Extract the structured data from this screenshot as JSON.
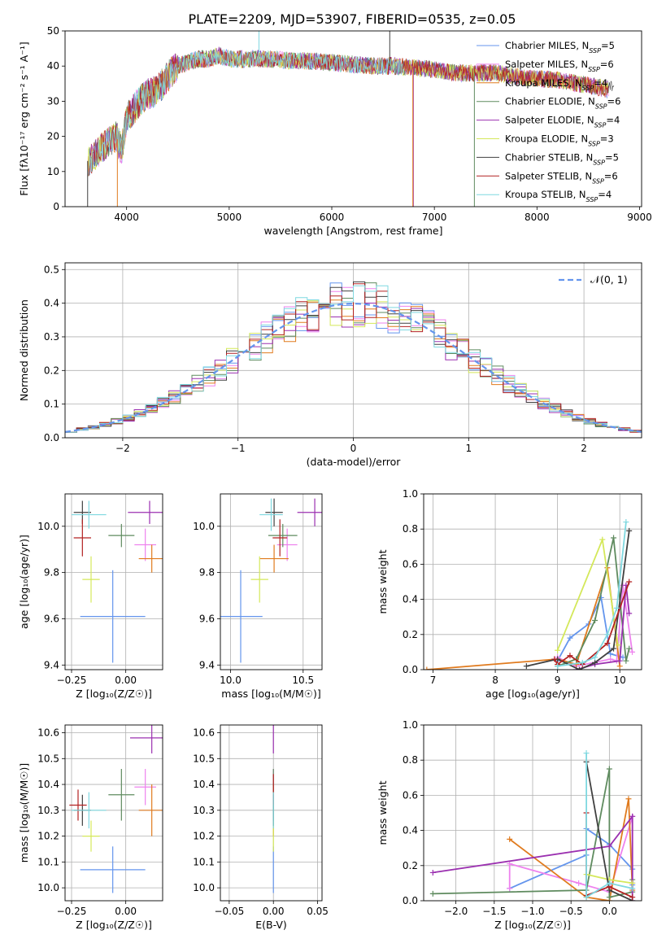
{
  "figure_title": "PLATE=2209, MJD=53907, FIBERID=0535, z=0.05",
  "legend": [
    {
      "label": "Chabrier MILES, N",
      "sub": "SSP",
      "suffix": "=5",
      "color": "#6495ed"
    },
    {
      "label": "Salpeter MILES, N",
      "sub": "SSP",
      "suffix": "=6",
      "color": "#ee82ee"
    },
    {
      "label": "Kroupa MILES, N",
      "sub": "SSP",
      "suffix": "=4",
      "color": "#e07b1f"
    },
    {
      "label": "Chabrier ELODIE, N",
      "sub": "SSP",
      "suffix": "=6",
      "color": "#5f8b5f"
    },
    {
      "label": "Salpeter ELODIE, N",
      "sub": "SSP",
      "suffix": "=4",
      "color": "#9b30b0"
    },
    {
      "label": "Kroupa ELODIE, N",
      "sub": "SSP",
      "suffix": "=3",
      "color": "#d4e85a"
    },
    {
      "label": "Chabrier STELIB, N",
      "sub": "SSP",
      "suffix": "=5",
      "color": "#404040"
    },
    {
      "label": "Salpeter STELIB, N",
      "sub": "SSP",
      "suffix": "=6",
      "color": "#b22222"
    },
    {
      "label": "Kroupa STELIB, N",
      "sub": "SSP",
      "suffix": "=4",
      "color": "#7fd8e0"
    }
  ],
  "chart_data": [
    {
      "id": "spectrum",
      "type": "line",
      "xlabel": "wavelength [Angstrom, rest frame]",
      "ylabel": "Flux [f",
      "ylabel_full": "Flux [fλ10⁻¹⁷ erg cm⁻² s⁻¹ A⁻¹]",
      "xlim": [
        3400,
        9020
      ],
      "ylim": [
        0,
        50
      ],
      "xticks": [
        "4000",
        "5000",
        "6000",
        "7000",
        "8000",
        "9000"
      ],
      "yticks": [
        "0",
        "10",
        "20",
        "30",
        "40",
        "50"
      ],
      "x": [
        3620,
        3700,
        3800,
        3900,
        3950,
        4000,
        4100,
        4200,
        4300,
        4400,
        4500,
        4600,
        4700,
        4800,
        4900,
        5000,
        5200,
        5400,
        5600,
        5800,
        6000,
        6200,
        6400,
        6600,
        6800,
        7000,
        7200,
        7400,
        7600,
        7800,
        8000,
        8200,
        8400,
        8600,
        8750
      ],
      "y": [
        13,
        15,
        18,
        20,
        16,
        25,
        29,
        32,
        33,
        37,
        40,
        41,
        42,
        42,
        43,
        42,
        42,
        42,
        41.5,
        41.5,
        41,
        40.5,
        40,
        40,
        39.5,
        39,
        38,
        38,
        38,
        37,
        36.5,
        36,
        35,
        34,
        33
      ]
    },
    {
      "id": "residuals",
      "type": "histogram",
      "xlabel": "(data-model)/error",
      "ylabel": "Normed distribution",
      "xlim": [
        -2.5,
        2.5
      ],
      "ylim": [
        0,
        0.52
      ],
      "xticks": [
        "−2",
        "−1",
        "0",
        "1",
        "2"
      ],
      "yticks": [
        "0.0",
        "0.1",
        "0.2",
        "0.3",
        "0.4",
        "0.5"
      ],
      "normal_label": "𝒩(0, 1)",
      "bin_width": 0.1
    },
    {
      "id": "age_vs_Z",
      "type": "scatter",
      "xlabel": "Z [log₁₀(Z/Z☉)]",
      "ylabel": "age  [log₁₀(age/yr)]",
      "xlim": [
        -0.28,
        0.17
      ],
      "ylim": [
        9.38,
        10.14
      ],
      "xticks": [
        {
          "v": -0.25,
          "t": "−0.25"
        },
        {
          "v": 0.0,
          "t": "0.00"
        }
      ],
      "yticks": [
        {
          "v": 9.4,
          "t": "9.4"
        },
        {
          "v": 9.6,
          "t": "9.6"
        },
        {
          "v": 9.8,
          "t": "9.8"
        },
        {
          "v": 10.0,
          "t": "10.0"
        }
      ],
      "points": [
        {
          "x": -0.06,
          "y": 9.61,
          "ex": 0.15,
          "ey": 0.2
        },
        {
          "x": 0.09,
          "y": 9.92,
          "ex": 0.05,
          "ey": 0.07
        },
        {
          "x": 0.12,
          "y": 9.86,
          "ex": 0.06,
          "ey": 0.06
        },
        {
          "x": -0.02,
          "y": 9.96,
          "ex": 0.06,
          "ey": 0.05
        },
        {
          "x": 0.11,
          "y": 10.06,
          "ex": 0.1,
          "ey": 0.05
        },
        {
          "x": -0.16,
          "y": 9.77,
          "ex": 0.04,
          "ey": 0.1
        },
        {
          "x": -0.2,
          "y": 10.06,
          "ex": 0.04,
          "ey": 0.05
        },
        {
          "x": -0.2,
          "y": 9.95,
          "ex": 0.04,
          "ey": 0.08
        },
        {
          "x": -0.17,
          "y": 10.05,
          "ex": 0.08,
          "ey": 0.06
        }
      ]
    },
    {
      "id": "age_vs_mass",
      "type": "scatter",
      "xlabel": "mass [log₁₀(M/M☉)]",
      "xlim": [
        9.93,
        10.63
      ],
      "ylim": [
        9.38,
        10.14
      ],
      "xticks": [
        {
          "v": 10.0,
          "t": "10.0"
        },
        {
          "v": 10.5,
          "t": "10.5"
        }
      ],
      "yticks": [
        {
          "v": 9.4,
          "t": "9.4"
        },
        {
          "v": 9.6,
          "t": "9.6"
        },
        {
          "v": 9.8,
          "t": "9.8"
        },
        {
          "v": 10.0,
          "t": "10.0"
        }
      ],
      "points": [
        {
          "x": 10.07,
          "y": 9.61,
          "ex": 0.15,
          "ey": 0.2
        },
        {
          "x": 10.39,
          "y": 9.92,
          "ex": 0.07,
          "ey": 0.07
        },
        {
          "x": 10.3,
          "y": 9.86,
          "ex": 0.1,
          "ey": 0.06
        },
        {
          "x": 10.36,
          "y": 9.96,
          "ex": 0.1,
          "ey": 0.05
        },
        {
          "x": 10.58,
          "y": 10.06,
          "ex": 0.12,
          "ey": 0.06
        },
        {
          "x": 10.2,
          "y": 9.77,
          "ex": 0.06,
          "ey": 0.1
        },
        {
          "x": 10.3,
          "y": 10.06,
          "ex": 0.06,
          "ey": 0.06
        },
        {
          "x": 10.34,
          "y": 9.95,
          "ex": 0.05,
          "ey": 0.08
        },
        {
          "x": 10.28,
          "y": 10.05,
          "ex": 0.08,
          "ey": 0.07
        }
      ]
    },
    {
      "id": "weight_vs_age",
      "type": "line",
      "xlabel": "age  [log₁₀(age/yr)]",
      "ylabel": "mass weight",
      "xlim": [
        6.85,
        10.35
      ],
      "ylim": [
        0,
        1.0
      ],
      "xticks": [
        {
          "v": 7,
          "t": "7"
        },
        {
          "v": 8,
          "t": "8"
        },
        {
          "v": 9,
          "t": "9"
        },
        {
          "v": 10,
          "t": "10"
        }
      ],
      "yticks": [
        {
          "v": 0,
          "t": "0.0"
        },
        {
          "v": 0.2,
          "t": "0.2"
        },
        {
          "v": 0.4,
          "t": "0.4"
        },
        {
          "v": 0.6,
          "t": "0.6"
        },
        {
          "v": 0.8,
          "t": "0.8"
        },
        {
          "v": 1.0,
          "t": "1.0"
        }
      ],
      "series": [
        {
          "x": [
            9.0,
            9.2,
            9.5,
            9.7,
            9.85,
            10.05
          ],
          "y": [
            0.05,
            0.18,
            0.26,
            0.41,
            0.09,
            0.07
          ]
        },
        {
          "x": [
            9.0,
            9.3,
            9.85,
            9.95,
            10.05,
            10.2
          ],
          "y": [
            0.07,
            0.02,
            0.06,
            0.05,
            0.48,
            0.1
          ]
        },
        {
          "x": [
            6.9,
            9.0,
            9.3,
            9.8,
            10.0
          ],
          "y": [
            0.0,
            0.06,
            0.03,
            0.58,
            0.02
          ]
        },
        {
          "x": [
            9.0,
            9.3,
            9.6,
            9.9,
            10.1,
            10.15
          ],
          "y": [
            0.02,
            0.06,
            0.28,
            0.75,
            0.05,
            0.12
          ]
        },
        {
          "x": [
            9.3,
            9.6,
            10.0,
            10.1,
            10.15
          ],
          "y": [
            0.0,
            0.03,
            0.05,
            0.48,
            0.32
          ]
        },
        {
          "x": [
            9.0,
            9.72,
            9.97
          ],
          "y": [
            0.11,
            0.74,
            0.14
          ]
        },
        {
          "x": [
            8.5,
            9.0,
            9.35,
            9.6,
            9.9,
            10.15
          ],
          "y": [
            0.02,
            0.06,
            0.0,
            0.04,
            0.12,
            0.79
          ]
        },
        {
          "x": [
            8.95,
            9.0,
            9.2,
            9.4,
            9.8,
            10.15
          ],
          "y": [
            0.06,
            0.03,
            0.08,
            0.03,
            0.15,
            0.5
          ]
        },
        {
          "x": [
            9.0,
            9.4,
            9.6,
            9.8,
            9.95,
            10.1
          ],
          "y": [
            0.02,
            0.04,
            0.07,
            0.2,
            0.35,
            0.84
          ]
        }
      ]
    },
    {
      "id": "mass_vs_Z",
      "type": "scatter",
      "xlabel": "Z [log₁₀(Z/Z☉)]",
      "ylabel": "mass [log₁₀(M/M☉)]",
      "xlim": [
        -0.28,
        0.17
      ],
      "ylim": [
        9.95,
        10.63
      ],
      "xticks": [
        {
          "v": -0.25,
          "t": "−0.25"
        },
        {
          "v": 0.0,
          "t": "0.00"
        }
      ],
      "yticks": [
        {
          "v": 10.0,
          "t": "10.0"
        },
        {
          "v": 10.1,
          "t": "10.1"
        },
        {
          "v": 10.2,
          "t": "10.2"
        },
        {
          "v": 10.3,
          "t": "10.3"
        },
        {
          "v": 10.4,
          "t": "10.4"
        },
        {
          "v": 10.5,
          "t": "10.5"
        },
        {
          "v": 10.6,
          "t": "10.6"
        }
      ],
      "points": [
        {
          "x": -0.06,
          "y": 10.07,
          "ex": 0.15,
          "ey": 0.09
        },
        {
          "x": 0.09,
          "y": 10.39,
          "ex": 0.05,
          "ey": 0.07
        },
        {
          "x": 0.12,
          "y": 10.3,
          "ex": 0.06,
          "ey": 0.1
        },
        {
          "x": -0.02,
          "y": 10.36,
          "ex": 0.06,
          "ey": 0.1
        },
        {
          "x": 0.12,
          "y": 10.58,
          "ex": 0.1,
          "ey": 0.06
        },
        {
          "x": -0.16,
          "y": 10.2,
          "ex": 0.04,
          "ey": 0.06
        },
        {
          "x": -0.2,
          "y": 10.3,
          "ex": 0.04,
          "ey": 0.06
        },
        {
          "x": -0.22,
          "y": 10.32,
          "ex": 0.04,
          "ey": 0.06
        },
        {
          "x": -0.17,
          "y": 10.3,
          "ex": 0.08,
          "ey": 0.07
        }
      ]
    },
    {
      "id": "mass_vs_ebv",
      "type": "scatter",
      "xlabel": "E(B-V)",
      "xlim": [
        -0.06,
        0.055
      ],
      "ylim": [
        9.95,
        10.63
      ],
      "xticks": [
        {
          "v": -0.05,
          "t": "−0.05"
        },
        {
          "v": 0.0,
          "t": "0.00"
        },
        {
          "v": 0.05,
          "t": "0.05"
        }
      ],
      "yticks": [
        {
          "v": 10.0,
          "t": "10.0"
        },
        {
          "v": 10.1,
          "t": "10.1"
        },
        {
          "v": 10.2,
          "t": "10.2"
        },
        {
          "v": 10.3,
          "t": "10.3"
        },
        {
          "v": 10.4,
          "t": "10.4"
        },
        {
          "v": 10.5,
          "t": "10.5"
        },
        {
          "v": 10.6,
          "t": "10.6"
        }
      ],
      "points": [
        {
          "x": 0.0,
          "y": 10.07,
          "ex": 0.0,
          "ey": 0.09
        },
        {
          "x": 0.0,
          "y": 10.39,
          "ex": 0.0,
          "ey": 0.07
        },
        {
          "x": 0.0,
          "y": 10.3,
          "ex": 0.0,
          "ey": 0.1
        },
        {
          "x": 0.0,
          "y": 10.36,
          "ex": 0.0,
          "ey": 0.1
        },
        {
          "x": 0.0,
          "y": 10.58,
          "ex": 0.0,
          "ey": 0.06
        },
        {
          "x": 0.0,
          "y": 10.2,
          "ex": 0.0,
          "ey": 0.06
        },
        {
          "x": 0.0,
          "y": 10.3,
          "ex": 0.0,
          "ey": 0.06
        },
        {
          "x": 0.0,
          "y": 10.38,
          "ex": 0.0,
          "ey": 0.06
        },
        {
          "x": 0.0,
          "y": 10.3,
          "ex": 0.0,
          "ey": 0.07
        }
      ]
    },
    {
      "id": "weight_vs_Z",
      "type": "line",
      "xlabel": "Z [log₁₀(Z/Z☉)]",
      "ylabel": "mass weight",
      "xlim": [
        -2.42,
        0.42
      ],
      "ylim": [
        0,
        1.0
      ],
      "xticks": [
        {
          "v": -2.0,
          "t": "−2.0"
        },
        {
          "v": -1.5,
          "t": "−1.5"
        },
        {
          "v": -1.0,
          "t": "−1.0"
        },
        {
          "v": -0.5,
          "t": "−0.5"
        },
        {
          "v": 0.0,
          "t": "0.0"
        }
      ],
      "yticks": [
        {
          "v": 0,
          "t": "0.0"
        },
        {
          "v": 0.2,
          "t": "0.2"
        },
        {
          "v": 0.4,
          "t": "0.4"
        },
        {
          "v": 0.6,
          "t": "0.6"
        },
        {
          "v": 0.8,
          "t": "0.8"
        },
        {
          "v": 1.0,
          "t": "1.0"
        }
      ],
      "series": [
        {
          "x": [
            -1.3,
            -0.3,
            -0.3,
            0.0,
            0.3,
            0.3
          ],
          "y": [
            0.07,
            0.26,
            0.41,
            0.32,
            0.18,
            0.09
          ]
        },
        {
          "x": [
            -1.3,
            -1.3,
            -0.4,
            0.0,
            0.3,
            0.3
          ],
          "y": [
            0.07,
            0.21,
            0.1,
            0.05,
            0.48,
            0.1
          ]
        },
        {
          "x": [
            -1.3,
            -0.3,
            0.0,
            0.25,
            0.3
          ],
          "y": [
            0.35,
            0.02,
            0.0,
            0.58,
            0.06
          ]
        },
        {
          "x": [
            -2.3,
            -0.3,
            0.0,
            0.0,
            0.3,
            0.3
          ],
          "y": [
            0.04,
            0.06,
            0.75,
            0.02,
            0.05,
            0.12
          ]
        },
        {
          "x": [
            -2.3,
            0.0,
            0.3,
            0.3
          ],
          "y": [
            0.16,
            0.31,
            0.48,
            0.0
          ]
        },
        {
          "x": [
            -0.3,
            0.0,
            0.3
          ],
          "y": [
            0.15,
            0.12,
            0.1
          ]
        },
        {
          "x": [
            -0.3,
            0.0,
            0.3
          ],
          "y": [
            0.79,
            0.06,
            0.0
          ]
        },
        {
          "x": [
            -0.3,
            -0.3,
            0.0,
            0.3
          ],
          "y": [
            0.5,
            0.03,
            0.08,
            0.02
          ]
        },
        {
          "x": [
            -0.3,
            -0.3,
            0.0,
            0.3
          ],
          "y": [
            0.84,
            0.02,
            0.1,
            0.07
          ]
        }
      ]
    }
  ]
}
